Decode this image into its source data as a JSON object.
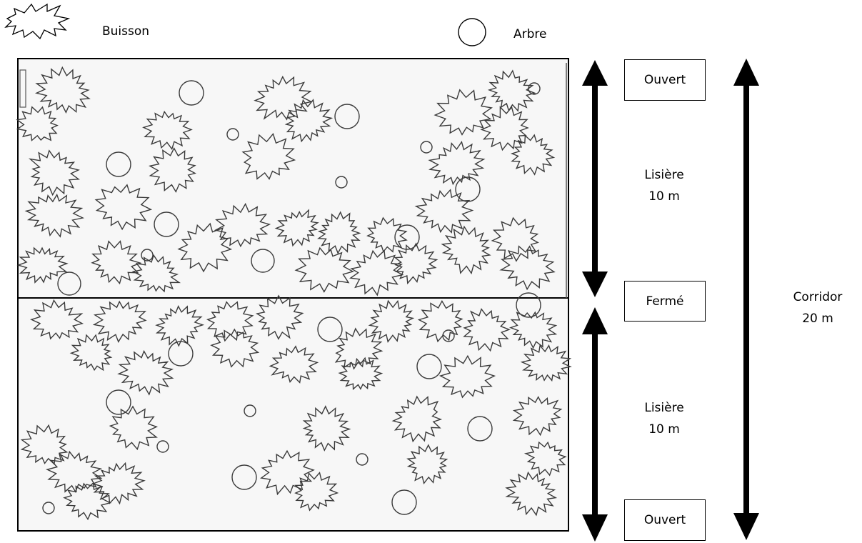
{
  "legend": {
    "bush_label": "Buisson",
    "tree_label": "Arbre",
    "bush_icon": "bush-icon",
    "tree_icon": "tree-icon"
  },
  "zones": {
    "top_state": "Ouvert",
    "middle_state": "Fermé",
    "bottom_state": "Ouvert",
    "top_edge_name": "Lisière",
    "top_edge_width": "10 m",
    "bottom_edge_name": "Lisière",
    "bottom_edge_width": "10 m",
    "corridor_name": "Corridor",
    "corridor_width": "20 m"
  },
  "colors": {
    "stroke": "#000000",
    "sketch": "#3a3a3a",
    "panel": "#f7f7f7"
  }
}
